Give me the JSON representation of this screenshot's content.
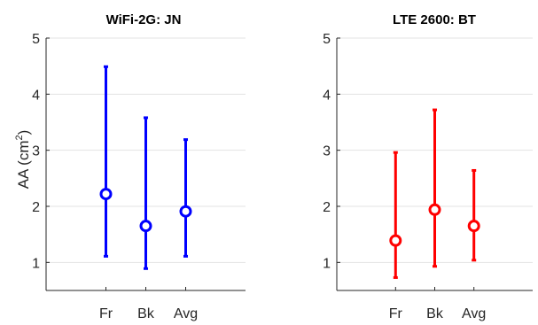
{
  "chart_data": [
    {
      "type": "errorbar",
      "title": "WiFi-2G: JN",
      "ylabel_base": "AA (cm",
      "ylabel_sup": "2",
      "ylabel_end": ")",
      "categories": [
        "Fr",
        "Bk",
        "Avg"
      ],
      "yticks": [
        "1",
        "2",
        "3",
        "4",
        "5"
      ],
      "ylim": [
        0.5,
        5
      ],
      "grid": true,
      "color": "#0000ff",
      "series": [
        {
          "values": [
            2.22,
            1.65,
            1.91
          ],
          "lower": [
            1.11,
            0.89,
            1.11
          ],
          "upper": [
            4.49,
            3.58,
            3.19
          ]
        }
      ]
    },
    {
      "type": "errorbar",
      "title": "LTE 2600: BT",
      "categories": [
        "Fr",
        "Bk",
        "Avg"
      ],
      "yticks": [
        "1",
        "2",
        "3",
        "4",
        "5"
      ],
      "ylim": [
        0.5,
        5
      ],
      "grid": true,
      "color": "#ff0000",
      "series": [
        {
          "values": [
            1.39,
            1.94,
            1.65
          ],
          "lower": [
            0.73,
            0.93,
            1.04
          ],
          "upper": [
            2.96,
            3.72,
            2.64
          ]
        }
      ]
    }
  ]
}
